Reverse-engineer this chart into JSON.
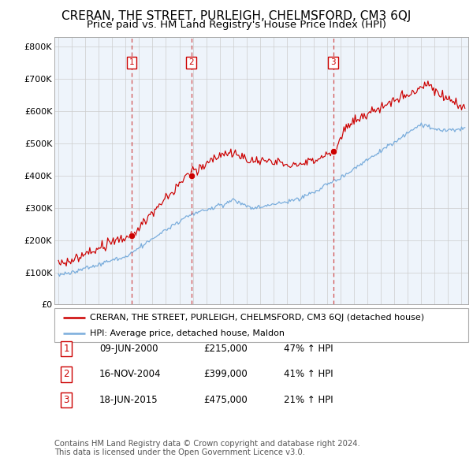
{
  "title": "CRERAN, THE STREET, PURLEIGH, CHELMSFORD, CM3 6QJ",
  "subtitle": "Price paid vs. HM Land Registry's House Price Index (HPI)",
  "ylim": [
    0,
    830000
  ],
  "yticks": [
    0,
    100000,
    200000,
    300000,
    400000,
    500000,
    600000,
    700000,
    800000
  ],
  "ytick_labels": [
    "£0",
    "£100K",
    "£200K",
    "£300K",
    "£400K",
    "£500K",
    "£600K",
    "£700K",
    "£800K"
  ],
  "xlim_start": 1994.7,
  "xlim_end": 2025.5,
  "sale_dates": [
    2000.44,
    2004.88,
    2015.44
  ],
  "sale_prices": [
    215000,
    399000,
    475000
  ],
  "sale_labels": [
    "1",
    "2",
    "3"
  ],
  "red_line_label": "CRERAN, THE STREET, PURLEIGH, CHELMSFORD, CM3 6QJ (detached house)",
  "blue_line_label": "HPI: Average price, detached house, Maldon",
  "table_rows": [
    [
      "1",
      "09-JUN-2000",
      "£215,000",
      "47% ↑ HPI"
    ],
    [
      "2",
      "16-NOV-2004",
      "£399,000",
      "41% ↑ HPI"
    ],
    [
      "3",
      "18-JUN-2015",
      "£475,000",
      "21% ↑ HPI"
    ]
  ],
  "footnote": "Contains HM Land Registry data © Crown copyright and database right 2024.\nThis data is licensed under the Open Government Licence v3.0.",
  "red_color": "#cc0000",
  "blue_color": "#7aaddc",
  "blue_fill_color": "#ddeeff",
  "grid_color": "#cccccc",
  "background_color": "#ffffff",
  "chart_bg_color": "#eef4fb",
  "vline_color": "#cc3333",
  "title_fontsize": 11,
  "subtitle_fontsize": 9.5,
  "tick_fontsize": 8,
  "table_fontsize": 9
}
